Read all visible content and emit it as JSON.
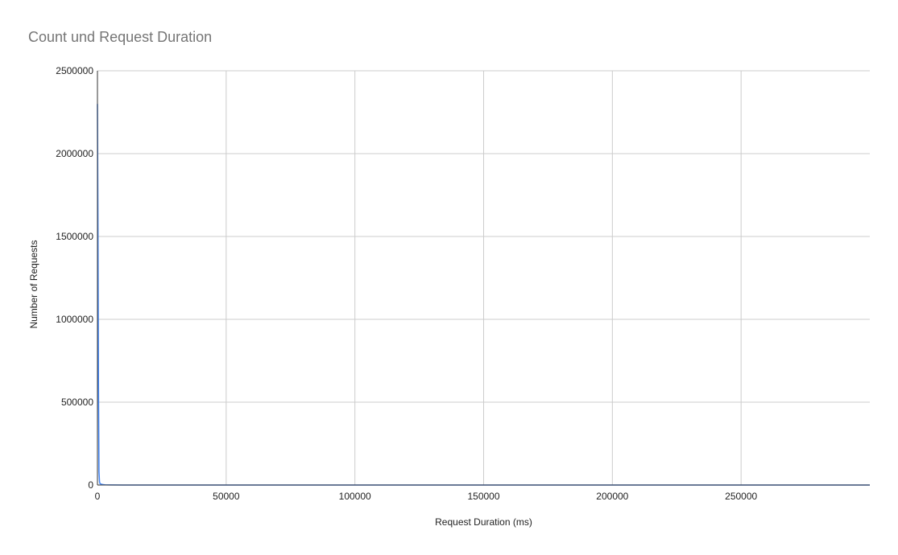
{
  "chart_data": {
    "type": "line",
    "title": "Count und Request Duration",
    "xlabel": "Request Duration (ms)",
    "ylabel": "Number of Requests",
    "xlim": [
      0,
      300000
    ],
    "ylim": [
      0,
      2500000
    ],
    "xticks": [
      0,
      50000,
      100000,
      150000,
      200000,
      250000
    ],
    "yticks": [
      0,
      500000,
      1000000,
      1500000,
      2000000,
      2500000
    ],
    "grid": true,
    "series": [
      {
        "color": "#4285f4",
        "x": [
          0,
          200,
          400,
          600,
          800,
          1000,
          1500,
          2000,
          2500,
          3000,
          5000,
          10000,
          50000,
          100000,
          150000,
          200000,
          250000,
          300000
        ],
        "y": [
          2300000,
          1550000,
          600000,
          80000,
          20000,
          8000,
          5000,
          3000,
          2000,
          1000,
          500,
          200,
          50,
          20,
          10,
          5,
          2,
          1
        ]
      }
    ]
  }
}
